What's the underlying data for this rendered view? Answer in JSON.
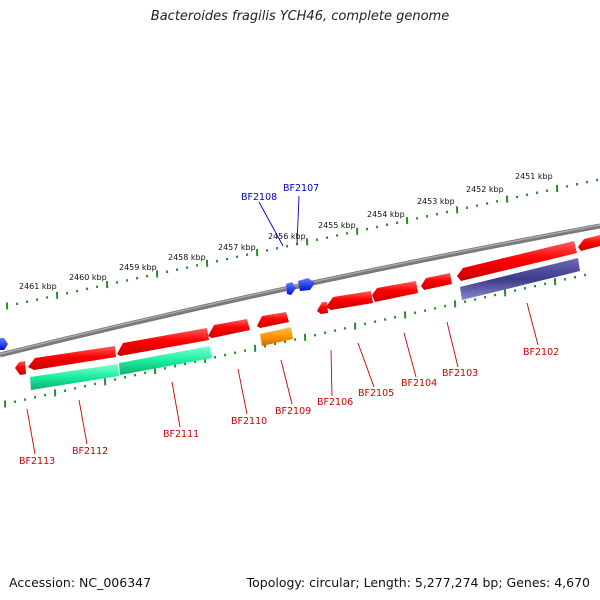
{
  "title": "Bacteroides fragilis YCH46, complete genome",
  "footer": {
    "accession": "Accession: NC_006347",
    "summary": "Topology: circular; Length: 5,277,274 bp; Genes: 4,670"
  },
  "scale": {
    "kbp_labels": [
      "2461 kbp",
      "2460 kbp",
      "2459 kbp",
      "2458 kbp",
      "2457 kbp",
      "2456 kbp",
      "2455 kbp",
      "2454 kbp",
      "2453 kbp",
      "2452 kbp",
      "2451 kbp"
    ]
  },
  "colors": {
    "gene_forward": "#ff1a1a",
    "cds_teal": "#1aeea0",
    "cds_orange": "#ff9500",
    "cds_navy": "#3d3a8a",
    "blue_feature": "#1530ff",
    "backbone": "#808080",
    "tick": "#2a8a2a",
    "label_red": "#cc0000",
    "label_blue": "#0000cc"
  },
  "gene_labels": [
    {
      "text": "BF2102",
      "color": "red"
    },
    {
      "text": "BF2103",
      "color": "red"
    },
    {
      "text": "BF2104",
      "color": "red"
    },
    {
      "text": "BF2105",
      "color": "red"
    },
    {
      "text": "BF2106",
      "color": "red"
    },
    {
      "text": "BF2109",
      "color": "red"
    },
    {
      "text": "BF2110",
      "color": "red"
    },
    {
      "text": "BF2111",
      "color": "red"
    },
    {
      "text": "BF2112",
      "color": "red"
    },
    {
      "text": "BF2113",
      "color": "red"
    },
    {
      "text": "BF2107",
      "color": "blue"
    },
    {
      "text": "BF2108",
      "color": "blue"
    }
  ]
}
